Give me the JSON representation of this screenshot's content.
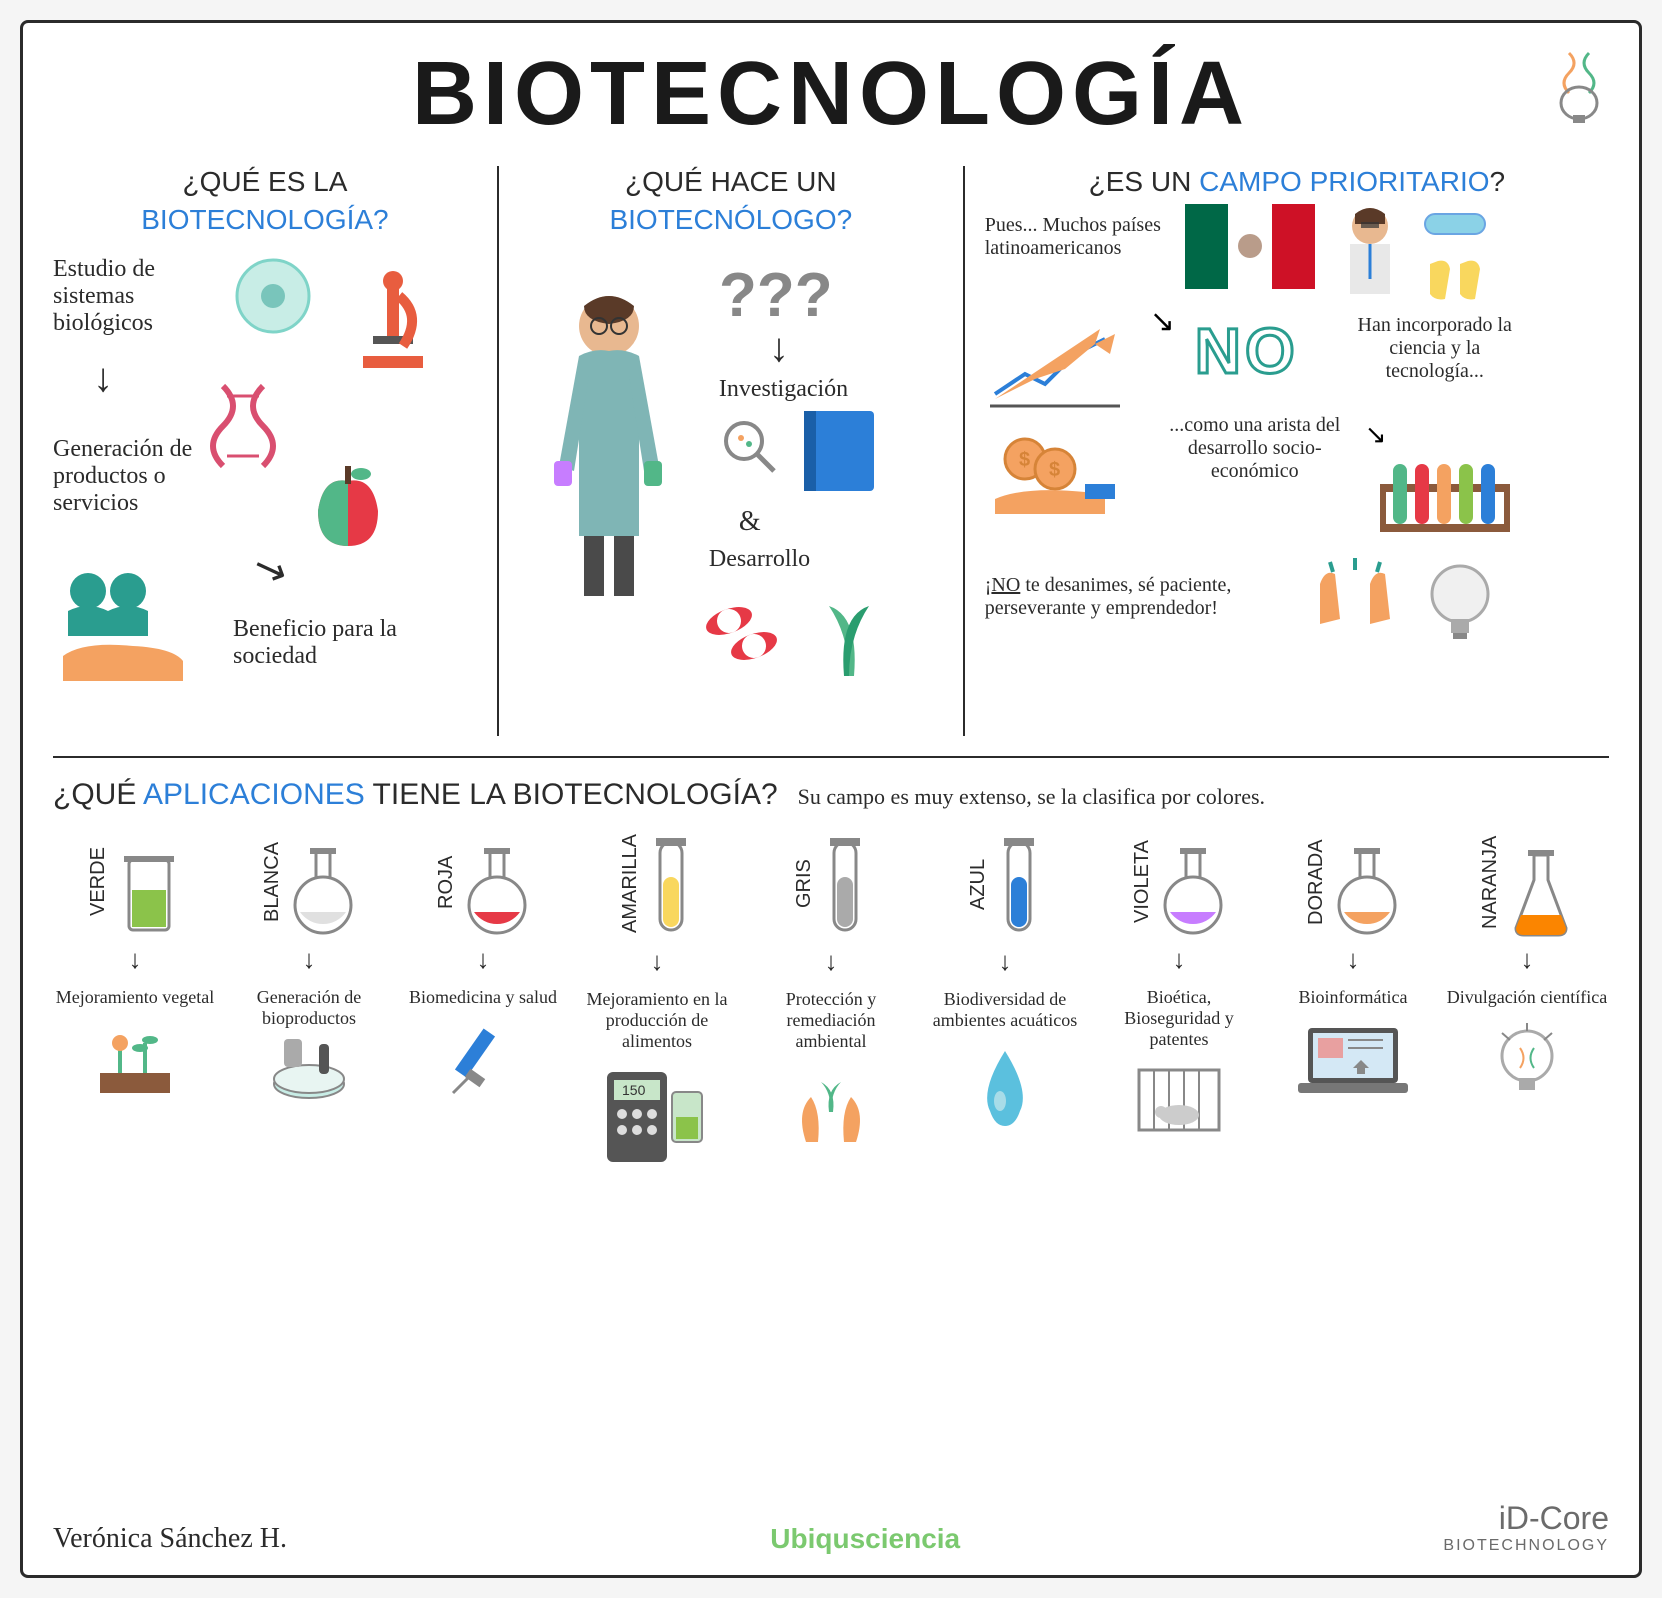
{
  "title": "BIOTECNOLOGÍA",
  "colors": {
    "text": "#2b2b2b",
    "highlight": "#2c7fd8",
    "bg": "#ffffff",
    "border": "#2b2b2b",
    "no_outline": "#2a9d8f",
    "brand_green": "#7bc96f",
    "brand_gray": "#6b6b6b"
  },
  "section1": {
    "q1": "¿QUÉ ES LA",
    "q2": "BIOTECNOLOGÍA?",
    "text1": "Estudio de sistemas biológicos",
    "text2": "Generación de productos o servicios",
    "text3": "Beneficio para la sociedad",
    "icons": {
      "cell_color": "#7fd4c8",
      "microscope_color": "#e85d3f",
      "dna_color": "#d94f70",
      "apple_red": "#e63946",
      "apple_green": "#52b788",
      "people_color": "#2a9d8f",
      "hand_color": "#f4a261"
    }
  },
  "section2": {
    "q1": "¿QUÉ HACE UN",
    "q2": "BIOTECNÓLOGO?",
    "text1": "Investigación",
    "text2": "&",
    "text3": "Desarrollo",
    "icons": {
      "scientist_coat": "#7fb5b5",
      "scientist_skin": "#e8b890",
      "scientist_hair": "#5a3a28",
      "question_color": "#888888",
      "book_color": "#2c7fd8",
      "magnifier_color": "#888888",
      "pill_red": "#e63946",
      "pill_white": "#ffffff",
      "leaf_color": "#52b788"
    }
  },
  "section3": {
    "q1_pre": "¿ES UN ",
    "q1_hl": "CAMPO PRIORITARIO",
    "q1_post": "?",
    "text1": "Pues... Muchos países latinoamericanos",
    "no": "NO",
    "text2": "Han incorporado la ciencia y la tecnología...",
    "text3": "...como una arista del desarrollo socio-económico",
    "text4": "¡NO te desanimes, sé paciente, perseverante y emprendedor!",
    "icons": {
      "flag_green": "#006847",
      "flag_white": "#ffffff",
      "flag_red": "#ce1126",
      "chart_arrow": "#f4a261",
      "chart_line": "#2c7fd8",
      "coin_color": "#f4a261",
      "scientist2_coat": "#e8e8e8",
      "goggles_color": "#5bc0de",
      "gloves_color": "#f9d75e",
      "tubes_rack": "#8b5a3c",
      "tube1": "#52b788",
      "tube2": "#e63946",
      "tube3": "#f4a261",
      "tube4": "#52b788",
      "tube5": "#2c7fd8",
      "hands_color": "#f4a261",
      "bulb_color": "#d0d0d0"
    }
  },
  "applications": {
    "title_pre": "¿QUÉ ",
    "title_hl": "APLICACIONES",
    "title_post": " TIENE LA BIOTECNOLOGÍA?",
    "subtitle": "Su campo es muy extenso, se la clasifica por colores.",
    "items": [
      {
        "label": "VERDE",
        "color": "#8bc34a",
        "desc": "Mejoramiento vegetal",
        "icon": "beaker",
        "icon2": "plant",
        "icon2_color": "#8bc34a"
      },
      {
        "label": "BLANCA",
        "color": "#e0e0e0",
        "desc": "Generación de bioproductos",
        "icon": "flask-round",
        "icon2": "petri",
        "icon2_color": "#7fd4c8"
      },
      {
        "label": "ROJA",
        "color": "#e63946",
        "desc": "Biomedicina y salud",
        "icon": "flask-round",
        "icon2": "syringe",
        "icon2_color": "#2c7fd8"
      },
      {
        "label": "AMARILLA",
        "color": "#f9d75e",
        "desc": "Mejoramiento en la producción de alimentos",
        "icon": "tube",
        "icon2": "calculator",
        "icon2_color": "#555555"
      },
      {
        "label": "GRIS",
        "color": "#aaaaaa",
        "desc": "Protección y remediación ambiental",
        "icon": "tube",
        "icon2": "hands-plant",
        "icon2_color": "#f4a261"
      },
      {
        "label": "AZUL",
        "color": "#2c7fd8",
        "desc": "Biodiversidad de ambientes acuáticos",
        "icon": "tube",
        "icon2": "water-drop",
        "icon2_color": "#5bc0de"
      },
      {
        "label": "VIOLETA",
        "color": "#c77dff",
        "desc": "Bioética, Bioseguridad y patentes",
        "icon": "flask-round",
        "icon2": "cage",
        "icon2_color": "#888888"
      },
      {
        "label": "DORADA",
        "color": "#f4a261",
        "desc": "Bioinformática",
        "icon": "flask-round",
        "icon2": "laptop",
        "icon2_color": "#555555"
      },
      {
        "label": "NARANJA",
        "color": "#fb8500",
        "desc": "Divulgación científica",
        "icon": "flask-erlenmeyer",
        "icon2": "bulb",
        "icon2_color": "#d0d0d0"
      }
    ]
  },
  "footer": {
    "signature": "Verónica Sánchez H.",
    "brand1": "Ubiqusciencia",
    "brand2_main": "iD-Core",
    "brand2_sub": "BIOTECHNOLOGY"
  }
}
